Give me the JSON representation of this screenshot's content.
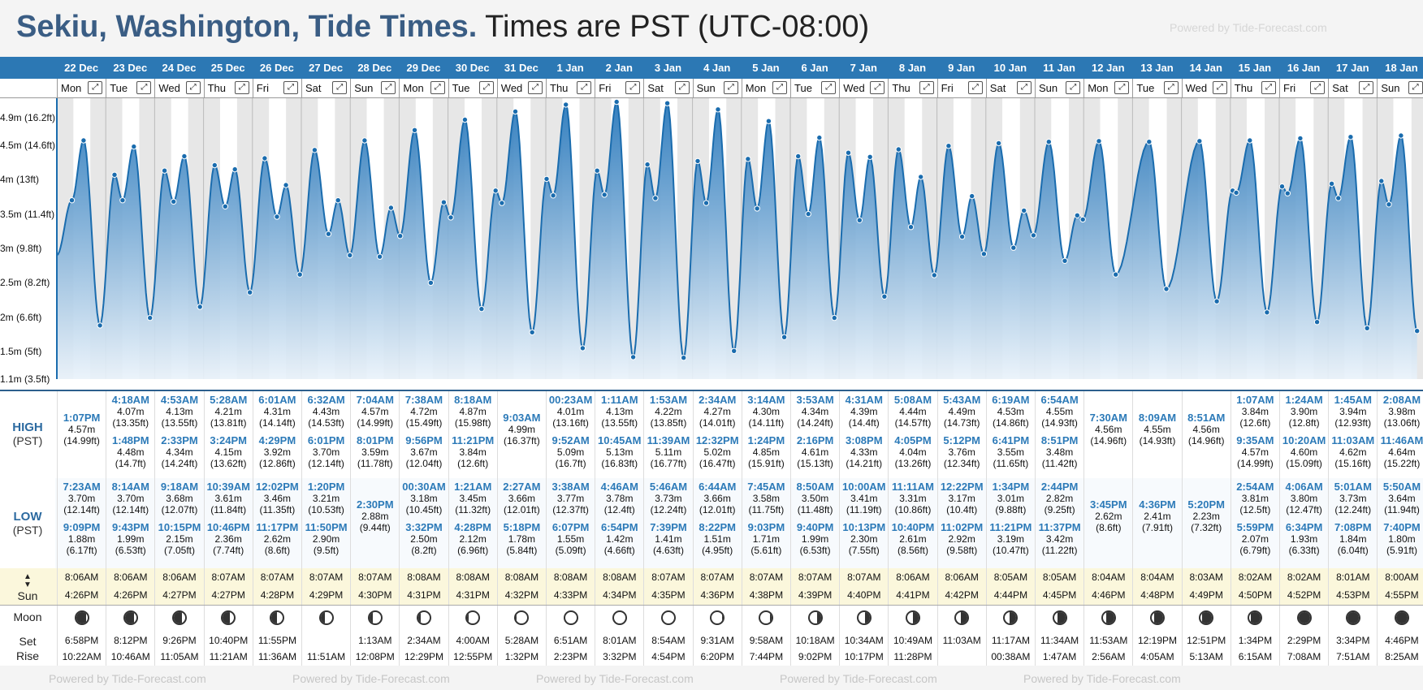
{
  "header": {
    "location_title": "Sekiu, Washington, Tide Times.",
    "timezone_text": "Times are PST (UTC-08:00)",
    "powered_by": "Powered by Tide-Forecast.com"
  },
  "colors": {
    "accent": "#2c78b4",
    "title": "#3a5d84",
    "time": "#2c7ab8",
    "sun_bg": "#fbf7dc"
  },
  "labels": {
    "high": "HIGH",
    "low": "LOW",
    "tz": "(PST)",
    "sun": "Sun",
    "moon": "Moon",
    "set": "Set",
    "rise": "Rise"
  },
  "y_axis": [
    "4.9m (16.2ft)",
    "4.5m (14.6ft)",
    "4m (13ft)",
    "3.5m (11.4ft)",
    "3m (9.8ft)",
    "2.5m (8.2ft)",
    "2m (6.6ft)",
    "1.5m (5ft)",
    "1.1m (3.5ft)"
  ],
  "days": [
    {
      "date": "22 Dec",
      "day": "Mon",
      "high": [
        {
          "time": "1:07PM",
          "m": "4.57m",
          "ft": "(14.99ft)"
        }
      ],
      "low": [
        {
          "time": "7:23AM",
          "m": "3.70m",
          "ft": "(12.14ft)"
        },
        {
          "time": "9:09PM",
          "m": "1.88m",
          "ft": "(6.17ft)"
        }
      ],
      "sunrise": "8:06AM",
      "sunset": "4:26PM",
      "moonset": "6:58PM",
      "moonrise": "10:22AM",
      "moon_phase": 0.05
    },
    {
      "date": "23 Dec",
      "day": "Tue",
      "high": [
        {
          "time": "4:18AM",
          "m": "4.07m",
          "ft": "(13.35ft)"
        },
        {
          "time": "1:48PM",
          "m": "4.48m",
          "ft": "(14.7ft)"
        }
      ],
      "low": [
        {
          "time": "8:14AM",
          "m": "3.70m",
          "ft": "(12.14ft)"
        },
        {
          "time": "9:43PM",
          "m": "1.99m",
          "ft": "(6.53ft)"
        }
      ],
      "sunrise": "8:06AM",
      "sunset": "4:26PM",
      "moonset": "8:12PM",
      "moonrise": "10:46AM",
      "moon_phase": 0.1
    },
    {
      "date": "24 Dec",
      "day": "Wed",
      "high": [
        {
          "time": "4:53AM",
          "m": "4.13m",
          "ft": "(13.55ft)"
        },
        {
          "time": "2:33PM",
          "m": "4.34m",
          "ft": "(14.24ft)"
        }
      ],
      "low": [
        {
          "time": "9:18AM",
          "m": "3.68m",
          "ft": "(12.07ft)"
        },
        {
          "time": "10:15PM",
          "m": "2.15m",
          "ft": "(7.05ft)"
        }
      ],
      "sunrise": "8:06AM",
      "sunset": "4:27PM",
      "moonset": "9:26PM",
      "moonrise": "11:05AM",
      "moon_phase": 0.15
    },
    {
      "date": "25 Dec",
      "day": "Thu",
      "high": [
        {
          "time": "5:28AM",
          "m": "4.21m",
          "ft": "(13.81ft)"
        },
        {
          "time": "3:24PM",
          "m": "4.15m",
          "ft": "(13.62ft)"
        }
      ],
      "low": [
        {
          "time": "10:39AM",
          "m": "3.61m",
          "ft": "(11.84ft)"
        },
        {
          "time": "10:46PM",
          "m": "2.36m",
          "ft": "(7.74ft)"
        }
      ],
      "sunrise": "8:07AM",
      "sunset": "4:27PM",
      "moonset": "10:40PM",
      "moonrise": "11:21AM",
      "moon_phase": 0.2
    },
    {
      "date": "26 Dec",
      "day": "Fri",
      "high": [
        {
          "time": "6:01AM",
          "m": "4.31m",
          "ft": "(14.14ft)"
        },
        {
          "time": "4:29PM",
          "m": "3.92m",
          "ft": "(12.86ft)"
        }
      ],
      "low": [
        {
          "time": "12:02PM",
          "m": "3.46m",
          "ft": "(11.35ft)"
        },
        {
          "time": "11:17PM",
          "m": "2.62m",
          "ft": "(8.6ft)"
        }
      ],
      "sunrise": "8:07AM",
      "sunset": "4:28PM",
      "moonset": "11:55PM",
      "moonrise": "11:36AM",
      "moon_phase": 0.25
    },
    {
      "date": "27 Dec",
      "day": "Sat",
      "high": [
        {
          "time": "6:32AM",
          "m": "4.43m",
          "ft": "(14.53ft)"
        },
        {
          "time": "6:01PM",
          "m": "3.70m",
          "ft": "(12.14ft)"
        }
      ],
      "low": [
        {
          "time": "1:20PM",
          "m": "3.21m",
          "ft": "(10.53ft)"
        },
        {
          "time": "11:50PM",
          "m": "2.90m",
          "ft": "(9.5ft)"
        }
      ],
      "sunrise": "8:07AM",
      "sunset": "4:29PM",
      "moonset": "",
      "moonrise": "11:51AM",
      "moon_phase": 0.3
    },
    {
      "date": "28 Dec",
      "day": "Sun",
      "high": [
        {
          "time": "7:04AM",
          "m": "4.57m",
          "ft": "(14.99ft)"
        },
        {
          "time": "8:01PM",
          "m": "3.59m",
          "ft": "(11.78ft)"
        }
      ],
      "low": [
        {
          "time": "2:30PM",
          "m": "2.88m",
          "ft": "(9.44ft)"
        }
      ],
      "sunrise": "8:07AM",
      "sunset": "4:30PM",
      "moonset": "1:13AM",
      "moonrise": "12:08PM",
      "moon_phase": 0.35
    },
    {
      "date": "29 Dec",
      "day": "Mon",
      "high": [
        {
          "time": "7:38AM",
          "m": "4.72m",
          "ft": "(15.49ft)"
        },
        {
          "time": "9:56PM",
          "m": "3.67m",
          "ft": "(12.04ft)"
        }
      ],
      "low": [
        {
          "time": "00:30AM",
          "m": "3.18m",
          "ft": "(10.45ft)"
        },
        {
          "time": "3:32PM",
          "m": "2.50m",
          "ft": "(8.2ft)"
        }
      ],
      "sunrise": "8:08AM",
      "sunset": "4:31PM",
      "moonset": "2:34AM",
      "moonrise": "12:29PM",
      "moon_phase": 0.4
    },
    {
      "date": "30 Dec",
      "day": "Tue",
      "high": [
        {
          "time": "8:18AM",
          "m": "4.87m",
          "ft": "(15.98ft)"
        },
        {
          "time": "11:21PM",
          "m": "3.84m",
          "ft": "(12.6ft)"
        }
      ],
      "low": [
        {
          "time": "1:21AM",
          "m": "3.45m",
          "ft": "(11.32ft)"
        },
        {
          "time": "4:28PM",
          "m": "2.12m",
          "ft": "(6.96ft)"
        }
      ],
      "sunrise": "8:08AM",
      "sunset": "4:31PM",
      "moonset": "4:00AM",
      "moonrise": "12:55PM",
      "moon_phase": 0.43
    },
    {
      "date": "31 Dec",
      "day": "Wed",
      "high": [
        {
          "time": "9:03AM",
          "m": "4.99m",
          "ft": "(16.37ft)"
        }
      ],
      "low": [
        {
          "time": "2:27AM",
          "m": "3.66m",
          "ft": "(12.01ft)"
        },
        {
          "time": "5:18PM",
          "m": "1.78m",
          "ft": "(5.84ft)"
        }
      ],
      "sunrise": "8:08AM",
      "sunset": "4:32PM",
      "moonset": "5:28AM",
      "moonrise": "1:32PM",
      "moon_phase": 0.47
    },
    {
      "date": "1 Jan",
      "day": "Thu",
      "high": [
        {
          "time": "00:23AM",
          "m": "4.01m",
          "ft": "(13.16ft)"
        },
        {
          "time": "9:52AM",
          "m": "5.09m",
          "ft": "(16.7ft)"
        }
      ],
      "low": [
        {
          "time": "3:38AM",
          "m": "3.77m",
          "ft": "(12.37ft)"
        },
        {
          "time": "6:07PM",
          "m": "1.55m",
          "ft": "(5.09ft)"
        }
      ],
      "sunrise": "8:08AM",
      "sunset": "4:33PM",
      "moonset": "6:51AM",
      "moonrise": "2:23PM",
      "moon_phase": 0.5
    },
    {
      "date": "2 Jan",
      "day": "Fri",
      "high": [
        {
          "time": "1:11AM",
          "m": "4.13m",
          "ft": "(13.55ft)"
        },
        {
          "time": "10:45AM",
          "m": "5.13m",
          "ft": "(16.83ft)"
        }
      ],
      "low": [
        {
          "time": "4:46AM",
          "m": "3.78m",
          "ft": "(12.4ft)"
        },
        {
          "time": "6:54PM",
          "m": "1.42m",
          "ft": "(4.66ft)"
        }
      ],
      "sunrise": "8:08AM",
      "sunset": "4:34PM",
      "moonset": "8:01AM",
      "moonrise": "3:32PM",
      "moon_phase": 0.5
    },
    {
      "date": "3 Jan",
      "day": "Sat",
      "high": [
        {
          "time": "1:53AM",
          "m": "4.22m",
          "ft": "(13.85ft)"
        },
        {
          "time": "11:39AM",
          "m": "5.11m",
          "ft": "(16.77ft)"
        }
      ],
      "low": [
        {
          "time": "5:46AM",
          "m": "3.73m",
          "ft": "(12.24ft)"
        },
        {
          "time": "7:39PM",
          "m": "1.41m",
          "ft": "(4.63ft)"
        }
      ],
      "sunrise": "8:07AM",
      "sunset": "4:35PM",
      "moonset": "8:54AM",
      "moonrise": "4:54PM",
      "moon_phase": 0.5
    },
    {
      "date": "4 Jan",
      "day": "Sun",
      "high": [
        {
          "time": "2:34AM",
          "m": "4.27m",
          "ft": "(14.01ft)"
        },
        {
          "time": "12:32PM",
          "m": "5.02m",
          "ft": "(16.47ft)"
        }
      ],
      "low": [
        {
          "time": "6:44AM",
          "m": "3.66m",
          "ft": "(12.01ft)"
        },
        {
          "time": "8:22PM",
          "m": "1.51m",
          "ft": "(4.95ft)"
        }
      ],
      "sunrise": "8:07AM",
      "sunset": "4:36PM",
      "moonset": "9:31AM",
      "moonrise": "6:20PM",
      "moon_phase": 0.55
    },
    {
      "date": "5 Jan",
      "day": "Mon",
      "high": [
        {
          "time": "3:14AM",
          "m": "4.30m",
          "ft": "(14.11ft)"
        },
        {
          "time": "1:24PM",
          "m": "4.85m",
          "ft": "(15.91ft)"
        }
      ],
      "low": [
        {
          "time": "7:45AM",
          "m": "3.58m",
          "ft": "(11.75ft)"
        },
        {
          "time": "9:03PM",
          "m": "1.71m",
          "ft": "(5.61ft)"
        }
      ],
      "sunrise": "8:07AM",
      "sunset": "4:38PM",
      "moonset": "9:58AM",
      "moonrise": "7:44PM",
      "moon_phase": 0.6
    },
    {
      "date": "6 Jan",
      "day": "Tue",
      "high": [
        {
          "time": "3:53AM",
          "m": "4.34m",
          "ft": "(14.24ft)"
        },
        {
          "time": "2:16PM",
          "m": "4.61m",
          "ft": "(15.13ft)"
        }
      ],
      "low": [
        {
          "time": "8:50AM",
          "m": "3.50m",
          "ft": "(11.48ft)"
        },
        {
          "time": "9:40PM",
          "m": "1.99m",
          "ft": "(6.53ft)"
        }
      ],
      "sunrise": "8:07AM",
      "sunset": "4:39PM",
      "moonset": "10:18AM",
      "moonrise": "9:02PM",
      "moon_phase": 0.65
    },
    {
      "date": "7 Jan",
      "day": "Wed",
      "high": [
        {
          "time": "4:31AM",
          "m": "4.39m",
          "ft": "(14.4ft)"
        },
        {
          "time": "3:08PM",
          "m": "4.33m",
          "ft": "(14.21ft)"
        }
      ],
      "low": [
        {
          "time": "10:00AM",
          "m": "3.41m",
          "ft": "(11.19ft)"
        },
        {
          "time": "10:13PM",
          "m": "2.30m",
          "ft": "(7.55ft)"
        }
      ],
      "sunrise": "8:07AM",
      "sunset": "4:40PM",
      "moonset": "10:34AM",
      "moonrise": "10:17PM",
      "moon_phase": 0.7
    },
    {
      "date": "8 Jan",
      "day": "Thu",
      "high": [
        {
          "time": "5:08AM",
          "m": "4.44m",
          "ft": "(14.57ft)"
        },
        {
          "time": "4:05PM",
          "m": "4.04m",
          "ft": "(13.26ft)"
        }
      ],
      "low": [
        {
          "time": "11:11AM",
          "m": "3.31m",
          "ft": "(10.86ft)"
        },
        {
          "time": "10:40PM",
          "m": "2.61m",
          "ft": "(8.56ft)"
        }
      ],
      "sunrise": "8:06AM",
      "sunset": "4:41PM",
      "moonset": "10:49AM",
      "moonrise": "11:28PM",
      "moon_phase": 0.75
    },
    {
      "date": "9 Jan",
      "day": "Fri",
      "high": [
        {
          "time": "5:43AM",
          "m": "4.49m",
          "ft": "(14.73ft)"
        },
        {
          "time": "5:12PM",
          "m": "3.76m",
          "ft": "(12.34ft)"
        }
      ],
      "low": [
        {
          "time": "12:22PM",
          "m": "3.17m",
          "ft": "(10.4ft)"
        },
        {
          "time": "11:02PM",
          "m": "2.92m",
          "ft": "(9.58ft)"
        }
      ],
      "sunrise": "8:06AM",
      "sunset": "4:42PM",
      "moonset": "11:03AM",
      "moonrise": "",
      "moon_phase": 0.78
    },
    {
      "date": "10 Jan",
      "day": "Sat",
      "high": [
        {
          "time": "6:19AM",
          "m": "4.53m",
          "ft": "(14.86ft)"
        },
        {
          "time": "6:41PM",
          "m": "3.55m",
          "ft": "(11.65ft)"
        }
      ],
      "low": [
        {
          "time": "1:34PM",
          "m": "3.01m",
          "ft": "(9.88ft)"
        },
        {
          "time": "11:21PM",
          "m": "3.19m",
          "ft": "(10.47ft)"
        }
      ],
      "sunrise": "8:05AM",
      "sunset": "4:44PM",
      "moonset": "11:17AM",
      "moonrise": "00:38AM",
      "moon_phase": 0.8
    },
    {
      "date": "11 Jan",
      "day": "Sun",
      "high": [
        {
          "time": "6:54AM",
          "m": "4.55m",
          "ft": "(14.93ft)"
        },
        {
          "time": "8:51PM",
          "m": "3.48m",
          "ft": "(11.42ft)"
        }
      ],
      "low": [
        {
          "time": "2:44PM",
          "m": "2.82m",
          "ft": "(9.25ft)"
        },
        {
          "time": "11:37PM",
          "m": "3.42m",
          "ft": "(11.22ft)"
        }
      ],
      "sunrise": "8:05AM",
      "sunset": "4:45PM",
      "moonset": "11:34AM",
      "moonrise": "1:47AM",
      "moon_phase": 0.83
    },
    {
      "date": "12 Jan",
      "day": "Mon",
      "high": [
        {
          "time": "7:30AM",
          "m": "4.56m",
          "ft": "(14.96ft)"
        }
      ],
      "low": [
        {
          "time": "3:45PM",
          "m": "2.62m",
          "ft": "(8.6ft)"
        }
      ],
      "sunrise": "8:04AM",
      "sunset": "4:46PM",
      "moonset": "11:53AM",
      "moonrise": "2:56AM",
      "moon_phase": 0.86
    },
    {
      "date": "13 Jan",
      "day": "Tue",
      "high": [
        {
          "time": "8:09AM",
          "m": "4.55m",
          "ft": "(14.93ft)"
        }
      ],
      "low": [
        {
          "time": "4:36PM",
          "m": "2.41m",
          "ft": "(7.91ft)"
        }
      ],
      "sunrise": "8:04AM",
      "sunset": "4:48PM",
      "moonset": "12:19PM",
      "moonrise": "4:05AM",
      "moon_phase": 0.9
    },
    {
      "date": "14 Jan",
      "day": "Wed",
      "high": [
        {
          "time": "8:51AM",
          "m": "4.56m",
          "ft": "(14.96ft)"
        }
      ],
      "low": [
        {
          "time": "5:20PM",
          "m": "2.23m",
          "ft": "(7.32ft)"
        }
      ],
      "sunrise": "8:03AM",
      "sunset": "4:49PM",
      "moonset": "12:51PM",
      "moonrise": "5:13AM",
      "moon_phase": 0.93
    },
    {
      "date": "15 Jan",
      "day": "Thu",
      "high": [
        {
          "time": "1:07AM",
          "m": "3.84m",
          "ft": "(12.6ft)"
        },
        {
          "time": "9:35AM",
          "m": "4.57m",
          "ft": "(14.99ft)"
        }
      ],
      "low": [
        {
          "time": "2:54AM",
          "m": "3.81m",
          "ft": "(12.5ft)"
        },
        {
          "time": "5:59PM",
          "m": "2.07m",
          "ft": "(6.79ft)"
        }
      ],
      "sunrise": "8:02AM",
      "sunset": "4:50PM",
      "moonset": "1:34PM",
      "moonrise": "6:15AM",
      "moon_phase": 0.96
    },
    {
      "date": "16 Jan",
      "day": "Fri",
      "high": [
        {
          "time": "1:24AM",
          "m": "3.90m",
          "ft": "(12.8ft)"
        },
        {
          "time": "10:20AM",
          "m": "4.60m",
          "ft": "(15.09ft)"
        }
      ],
      "low": [
        {
          "time": "4:06AM",
          "m": "3.80m",
          "ft": "(12.47ft)"
        },
        {
          "time": "6:34PM",
          "m": "1.93m",
          "ft": "(6.33ft)"
        }
      ],
      "sunrise": "8:02AM",
      "sunset": "4:52PM",
      "moonset": "2:29PM",
      "moonrise": "7:08AM",
      "moon_phase": 0.98
    },
    {
      "date": "17 Jan",
      "day": "Sat",
      "high": [
        {
          "time": "1:45AM",
          "m": "3.94m",
          "ft": "(12.93ft)"
        },
        {
          "time": "11:03AM",
          "m": "4.62m",
          "ft": "(15.16ft)"
        }
      ],
      "low": [
        {
          "time": "5:01AM",
          "m": "3.73m",
          "ft": "(12.24ft)"
        },
        {
          "time": "7:08PM",
          "m": "1.84m",
          "ft": "(6.04ft)"
        }
      ],
      "sunrise": "8:01AM",
      "sunset": "4:53PM",
      "moonset": "3:34PM",
      "moonrise": "7:51AM",
      "moon_phase": 0.99
    },
    {
      "date": "18 Jan",
      "day": "Sun",
      "high": [
        {
          "time": "2:08AM",
          "m": "3.98m",
          "ft": "(13.06ft)"
        },
        {
          "time": "11:46AM",
          "m": "4.64m",
          "ft": "(15.22ft)"
        }
      ],
      "low": [
        {
          "time": "5:50AM",
          "m": "3.64m",
          "ft": "(11.94ft)"
        },
        {
          "time": "7:40PM",
          "m": "1.80m",
          "ft": "(5.91ft)"
        }
      ],
      "sunrise": "8:00AM",
      "sunset": "4:55PM",
      "moonset": "4:46PM",
      "moonrise": "8:25AM",
      "moon_phase": 1.0
    }
  ]
}
